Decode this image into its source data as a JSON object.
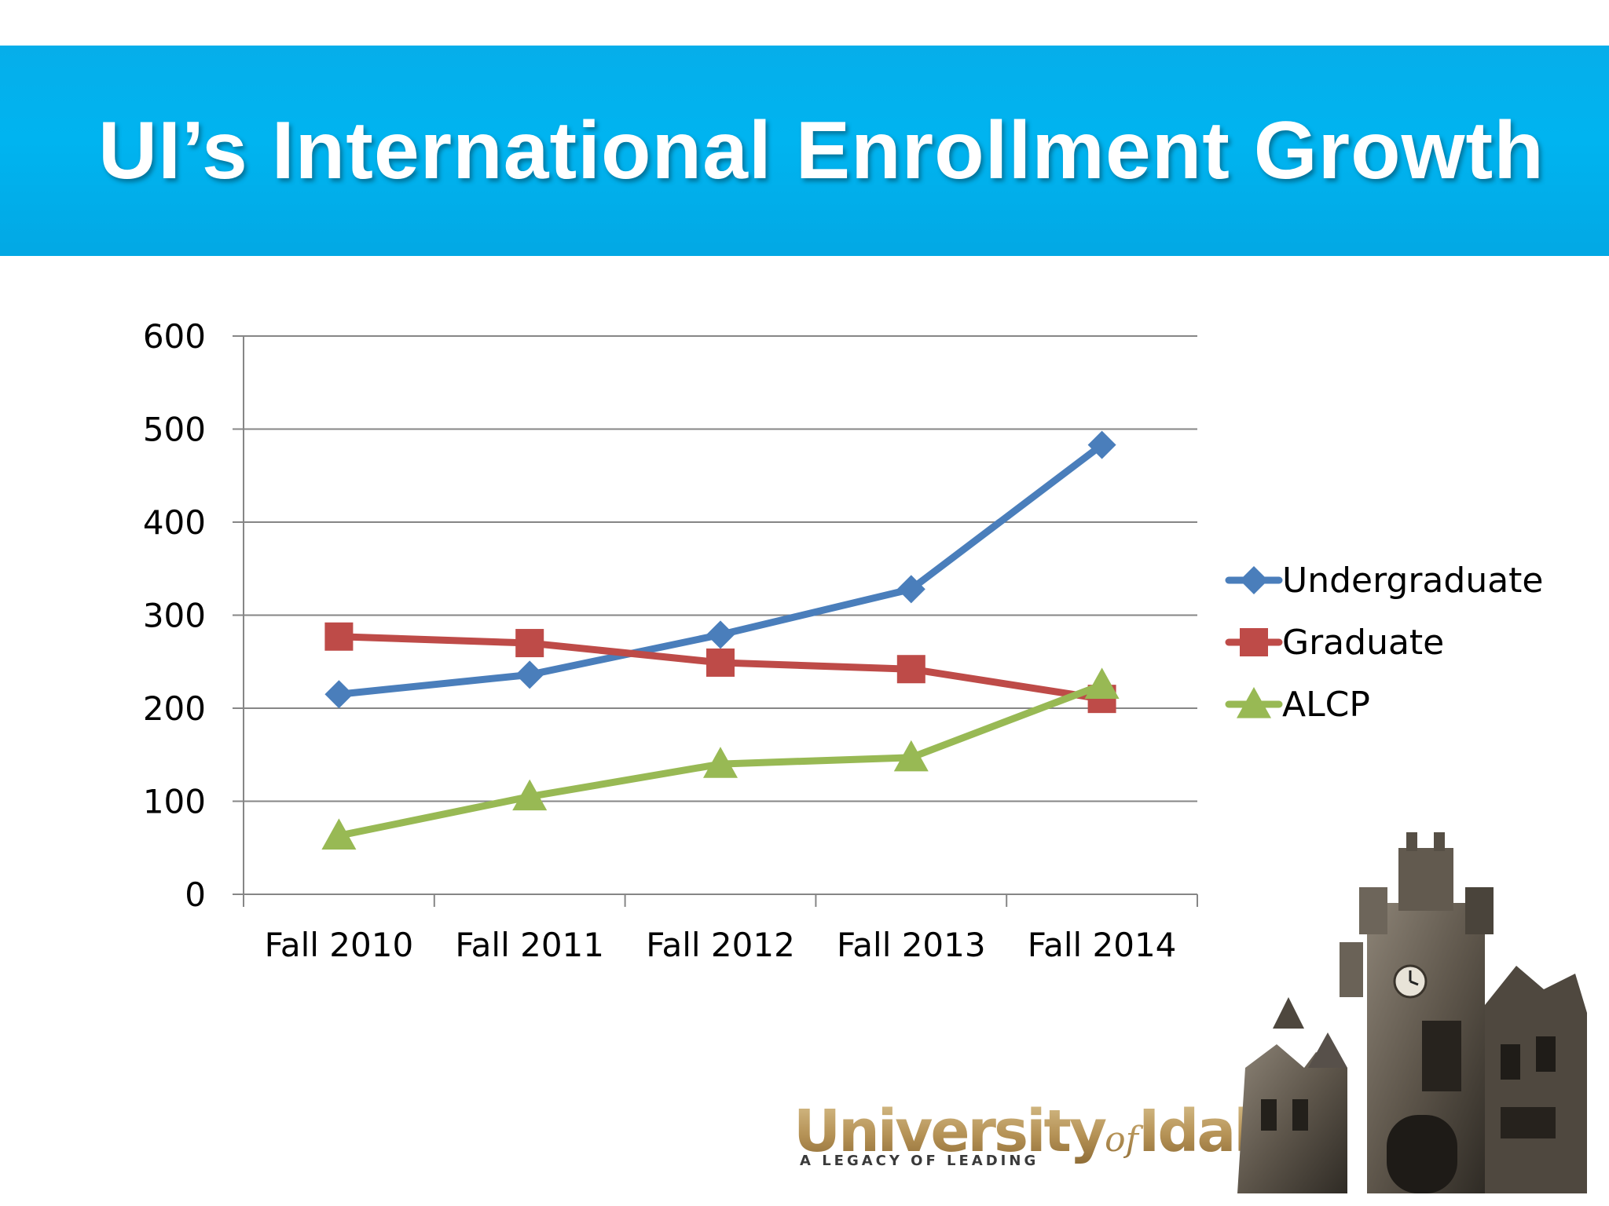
{
  "slide": {
    "title": "UI’s International Enrollment Growth",
    "logo": {
      "name_part1": "University",
      "name_part2": "of",
      "name_part3": "Idaho",
      "tagline": "A LEGACY OF LEADING"
    }
  },
  "colors": {
    "title_bar": "#00b0ee",
    "undergraduate": "#4a7ebb",
    "graduate": "#be4b48",
    "alcp": "#98b954",
    "gridline": "#868686"
  },
  "chart_data": {
    "type": "line",
    "categories": [
      "Fall 2010",
      "Fall 2011",
      "Fall 2012",
      "Fall 2013",
      "Fall 2014"
    ],
    "series": [
      {
        "name": "Undergraduate",
        "marker": "diamond",
        "color": "#4a7ebb",
        "values": [
          215,
          236,
          279,
          328,
          483
        ]
      },
      {
        "name": "Graduate",
        "marker": "square",
        "color": "#be4b48",
        "values": [
          277,
          270,
          249,
          242,
          210
        ]
      },
      {
        "name": "ALCP",
        "marker": "triangle",
        "color": "#98b954",
        "values": [
          63,
          105,
          140,
          147,
          225
        ]
      }
    ],
    "yticks": [
      0,
      100,
      200,
      300,
      400,
      500,
      600
    ],
    "ylim": [
      0,
      600
    ],
    "grid": true,
    "legend": "right"
  }
}
